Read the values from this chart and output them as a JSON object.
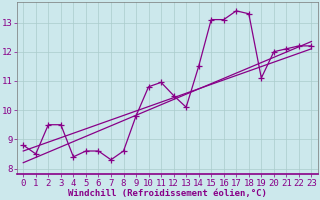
{
  "x": [
    0,
    1,
    2,
    3,
    4,
    5,
    6,
    7,
    8,
    9,
    10,
    11,
    12,
    13,
    14,
    15,
    16,
    17,
    18,
    19,
    20,
    21,
    22,
    23
  ],
  "y_line": [
    8.8,
    8.5,
    9.5,
    9.5,
    8.4,
    8.6,
    8.6,
    8.3,
    8.6,
    9.8,
    10.8,
    10.95,
    10.5,
    10.1,
    11.5,
    13.1,
    13.1,
    13.4,
    13.3,
    11.1,
    12.0,
    12.1,
    12.2,
    12.2
  ],
  "y_reg1_start": 8.6,
  "y_reg1_end": 12.1,
  "y_reg2_start": 8.2,
  "y_reg2_end": 12.35,
  "line_color": "#880088",
  "bg_color": "#cce8ec",
  "grid_color": "#aacccc",
  "xlabel": "Windchill (Refroidissement éolien,°C)",
  "xlim": [
    -0.5,
    23.5
  ],
  "ylim": [
    7.8,
    13.7
  ],
  "yticks": [
    8,
    9,
    10,
    11,
    12,
    13
  ],
  "xticks": [
    0,
    1,
    2,
    3,
    4,
    5,
    6,
    7,
    8,
    9,
    10,
    11,
    12,
    13,
    14,
    15,
    16,
    17,
    18,
    19,
    20,
    21,
    22,
    23
  ],
  "marker": "+",
  "markersize": 4,
  "linewidth": 0.9,
  "xlabel_fontsize": 6.5,
  "tick_fontsize": 6.5
}
